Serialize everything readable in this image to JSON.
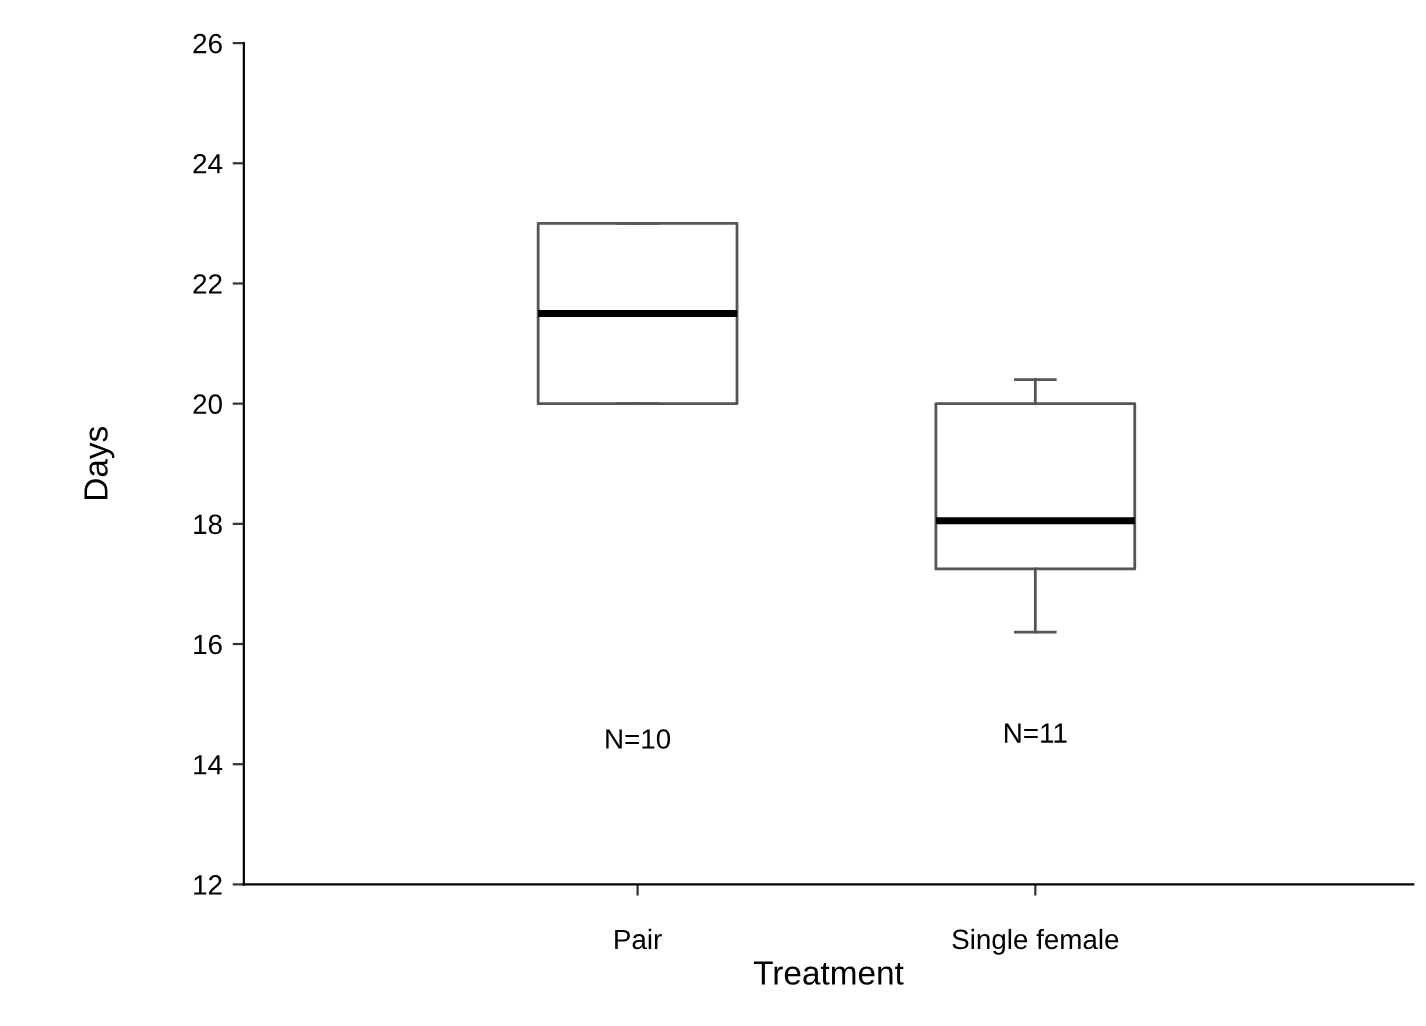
{
  "chart_data": {
    "type": "box",
    "xlabel": "Treatment",
    "ylabel": "Days",
    "categories": [
      "Pair",
      "Single female"
    ],
    "boxes": [
      {
        "low": 20,
        "q1": 20,
        "median": 21.5,
        "q3": 23,
        "high": 23
      },
      {
        "low": 16.2,
        "q1": 17.25,
        "median": 18.05,
        "q3": 20,
        "high": 20.4
      }
    ],
    "ylim": [
      12,
      26
    ],
    "yticks": [
      12,
      14,
      16,
      18,
      20,
      22,
      24,
      26
    ],
    "grid": false,
    "annotations": [
      "N=10",
      "N=11"
    ]
  }
}
